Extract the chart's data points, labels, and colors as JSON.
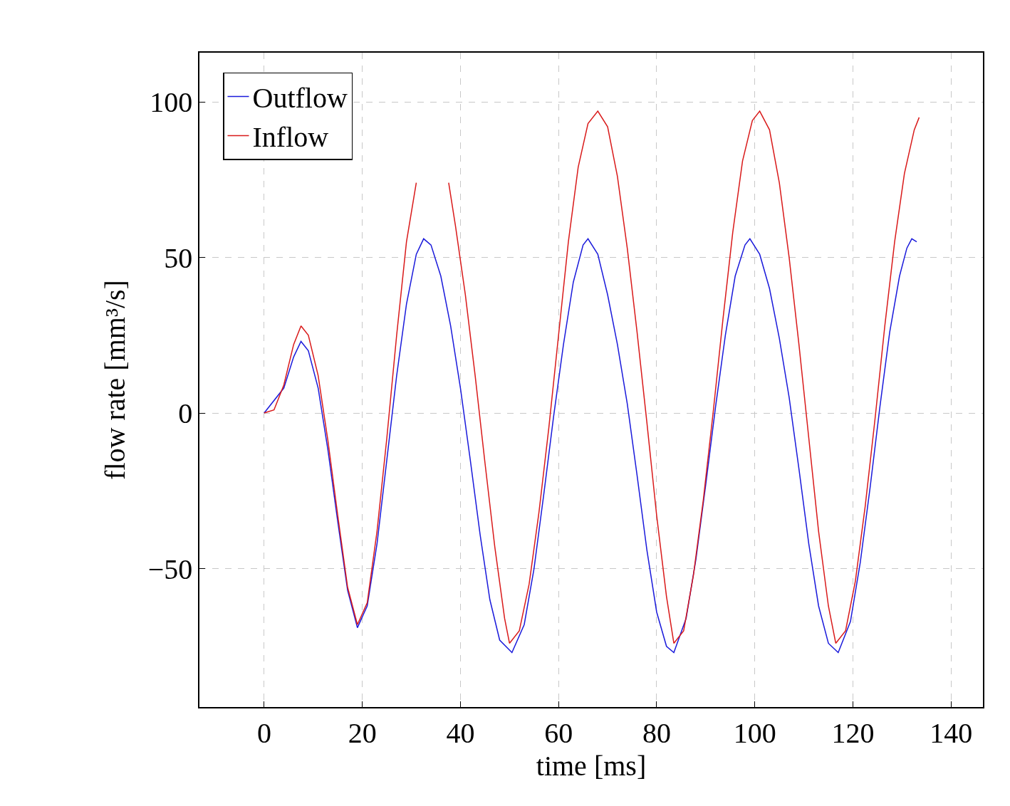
{
  "chart_data": {
    "type": "line",
    "xlabel": "time [ms]",
    "ylabel": "flow rate [mm³/s]",
    "xlim": [
      -13.2,
      146.5
    ],
    "ylim": [
      -94.5,
      115.8
    ],
    "xticks": [
      0,
      20,
      40,
      60,
      80,
      100,
      120,
      140
    ],
    "yticks": [
      {
        "value": -50,
        "label": "−50"
      },
      0,
      50,
      100
    ],
    "grid": true,
    "legend": "top left",
    "line_style": "solid",
    "marker": "none",
    "series": [
      {
        "name": "Outflow",
        "color": "#1a1adb",
        "x": [
          0,
          4,
          6,
          7.5,
          9,
          11,
          13,
          15,
          17,
          19,
          21,
          23,
          25,
          27,
          29,
          31,
          32.5,
          34,
          36,
          38,
          40,
          42,
          44,
          46,
          48,
          50.5,
          53,
          55,
          57,
          59,
          61,
          63,
          65,
          66,
          68,
          70,
          72,
          74,
          76,
          78,
          80,
          82,
          83.5,
          86,
          88,
          90,
          92,
          94,
          96,
          98,
          99,
          101,
          103,
          105,
          107,
          109,
          111,
          113,
          115,
          117,
          119.5,
          121.5,
          123.5,
          125.5,
          127.5,
          129.5,
          131,
          132,
          133
        ],
        "values": [
          0,
          8,
          18,
          23,
          20,
          8,
          -12,
          -35,
          -57,
          -69,
          -62,
          -42,
          -15,
          12,
          35,
          51,
          56,
          54,
          44,
          28,
          8,
          -15,
          -39,
          -60,
          -73,
          -77,
          -68,
          -50,
          -26,
          -1,
          22,
          42,
          54,
          56,
          51,
          38,
          22,
          3,
          -20,
          -44,
          -64,
          -75,
          -77,
          -66,
          -47,
          -23,
          2,
          25,
          44,
          54,
          56,
          51,
          40,
          24,
          5,
          -18,
          -42,
          -62,
          -74,
          -77,
          -67,
          -48,
          -24,
          2,
          26,
          44,
          53,
          56,
          55
        ]
      },
      {
        "name": "Inflow",
        "color": "#d91a1a",
        "x": [
          0,
          2,
          4,
          6,
          7.5,
          9,
          11,
          13,
          15,
          17,
          19,
          21,
          23,
          25,
          27,
          29,
          31,
          33,
          35,
          37,
          37.6,
          39,
          41,
          43,
          45,
          47,
          49,
          50,
          52,
          54,
          56,
          58,
          60,
          62,
          64,
          66,
          68,
          70,
          72,
          74,
          76,
          78,
          80,
          82,
          83.5,
          85.5,
          87.5,
          89.5,
          91.5,
          93.5,
          95.5,
          97.5,
          99.5,
          101,
          103,
          105,
          107,
          109,
          111,
          113,
          115,
          116.5,
          118.5,
          120.5,
          122.5,
          124.5,
          126.5,
          128.5,
          130.5,
          132.5,
          133.5
        ],
        "values": [
          0,
          1,
          9,
          22,
          28,
          25,
          12,
          -9,
          -33,
          -56,
          -68,
          -61,
          -38,
          -8,
          25,
          55,
          74,
          null,
          null,
          null,
          74,
          60,
          38,
          12,
          -16,
          -43,
          -66,
          -74,
          -70,
          -55,
          -32,
          -5,
          25,
          55,
          79,
          93,
          97,
          92,
          76,
          53,
          26,
          -3,
          -33,
          -59,
          -74,
          -70,
          -52,
          -28,
          0,
          30,
          58,
          81,
          94,
          97,
          91,
          74,
          50,
          22,
          -8,
          -38,
          -62,
          -74,
          -70,
          -54,
          -30,
          -2,
          28,
          55,
          77,
          91,
          95
        ]
      }
    ]
  }
}
